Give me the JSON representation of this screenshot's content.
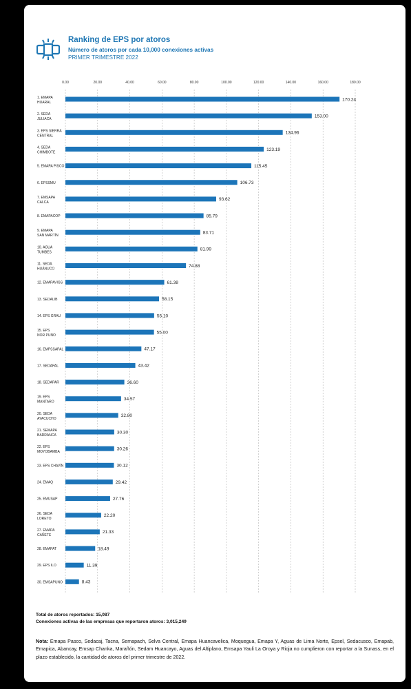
{
  "header": {
    "title": "Ranking de EPS por atoros",
    "subtitle": "Número de atoros por cada 10,000 conexiones activas",
    "period": "PRIMER TRIMESTRE 2022",
    "logo_icon": "pipe-icon"
  },
  "colors": {
    "accent": "#1f77b4",
    "bar": "#1c75b9",
    "background": "#000000",
    "card": "#ffffff"
  },
  "chart_data": {
    "type": "bar",
    "orientation": "horizontal",
    "axis_position": "top",
    "grid": true,
    "xlim": [
      0,
      180
    ],
    "ticks": [
      "0.00",
      "20.00",
      "40.00",
      "60.00",
      "80.00",
      "100.00",
      "120.00",
      "140.00",
      "160.00",
      "180.00"
    ],
    "categories": [
      [
        "1. EMAPA",
        "HUARAL"
      ],
      [
        "2. SEDA",
        "JULIACA"
      ],
      [
        "3. EPS SIERRA",
        "CENTRAL"
      ],
      [
        "4. SEDA",
        "CHIMBOTE"
      ],
      [
        "5. EMAPA PISCO"
      ],
      [
        "6. EPSSMU"
      ],
      [
        "7. EMSAPA",
        "CALCA"
      ],
      [
        "8. EMAPACOP"
      ],
      [
        "9. EMAPA",
        "SAN MARTÍN"
      ],
      [
        "10. AGUA",
        "TUMBES"
      ],
      [
        "11. SEDA",
        "HUÁNUCO"
      ],
      [
        "12. EMAPAVIGS"
      ],
      [
        "13. SEDALIB"
      ],
      [
        "14. EPS GRAU"
      ],
      [
        "15. EPS",
        "NOR PUNO"
      ],
      [
        "16. EMPSSAPAL"
      ],
      [
        "17. SEDAPAL"
      ],
      [
        "18. SEDAPAR"
      ],
      [
        "19. EPS",
        "MANTARO"
      ],
      [
        "20. SEDA",
        "AYACUCHO"
      ],
      [
        "21. SEMAPA",
        "BARRANCA"
      ],
      [
        "22. EPS",
        "MOYOBAMBA"
      ],
      [
        "23. EPS CHAVÍN"
      ],
      [
        "24. EMAQ"
      ],
      [
        "25. EMUSAP"
      ],
      [
        "26. SEDA",
        "LORETO"
      ],
      [
        "27. EMAPA",
        "CAÑETE"
      ],
      [
        "28. EMAPAT"
      ],
      [
        "29. EPS ILO"
      ],
      [
        "30. EMSAPUNO"
      ]
    ],
    "values": [
      170.24,
      153.0,
      134.96,
      123.19,
      115.45,
      106.73,
      93.62,
      85.79,
      83.71,
      81.99,
      74.88,
      61.38,
      58.15,
      55.1,
      55.0,
      47.17,
      43.42,
      36.6,
      34.57,
      32.8,
      30.3,
      30.26,
      30.12,
      29.42,
      27.76,
      22.2,
      21.33,
      18.49,
      11.39,
      8.43
    ],
    "value_labels": [
      "170.24",
      "153.00",
      "134.96",
      "123.19",
      "115.45",
      "106.73",
      "93.62",
      "85.79",
      "83.71",
      "81.99",
      "74.88",
      "61.38",
      "58.15",
      "55.10",
      "55.00",
      "47.17",
      "43.42",
      "36.60",
      "34.57",
      "32.80",
      "30.30",
      "30.26",
      "30.12",
      "29.42",
      "27.76",
      "22.20",
      "21.33",
      "18.49",
      "11.39",
      "8.43"
    ]
  },
  "footer": {
    "total_label": "Total de atoros reportados: 15,087",
    "connections_label": "Conexiones activas de las empresas que reportaron atoros: 3,015,249",
    "note_label": "Nota:",
    "note_text": "Emapa Pasco, Sedacaj, Tacna, Semapach, Selva Central, Emapa Huancavelica, Moquegua, Emapa Y, Aguas de Lima Norte, Epsel, Sedacusco, Emapab, Emapica, Abancay, Emsap Chanka, Marañón, Sedam Huancayo, Aguas del Altiplano, Emsapa Yauli La Oroya y Rioja no cumplieron con reportar a la Sunass, en el plazo establecido, la cantidad de atoros del primer trimestre de 2022."
  }
}
